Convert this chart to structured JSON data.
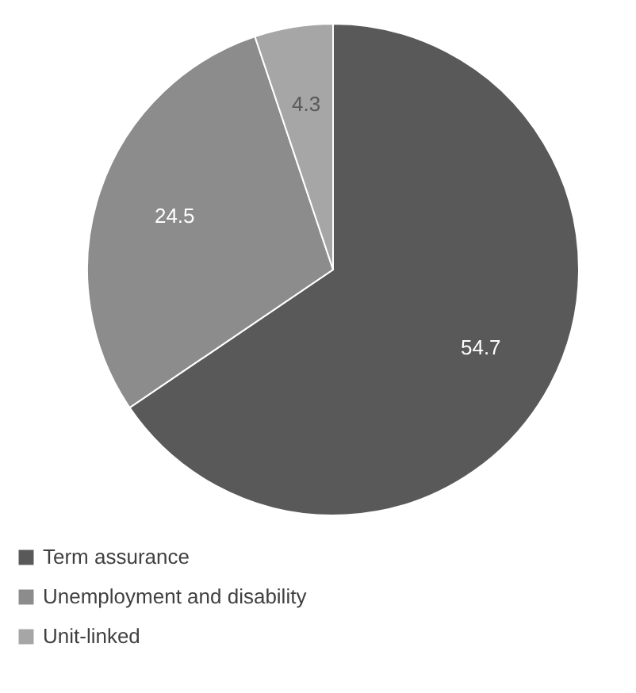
{
  "chart_data": {
    "type": "pie",
    "categories": [
      "Term assurance",
      "Unemployment and disability",
      "Unit-linked"
    ],
    "values": [
      54.7,
      24.5,
      4.3
    ],
    "colors": [
      "#595959",
      "#8c8c8c",
      "#a6a6a6"
    ],
    "data_labels": true,
    "legend": "bottom left"
  }
}
